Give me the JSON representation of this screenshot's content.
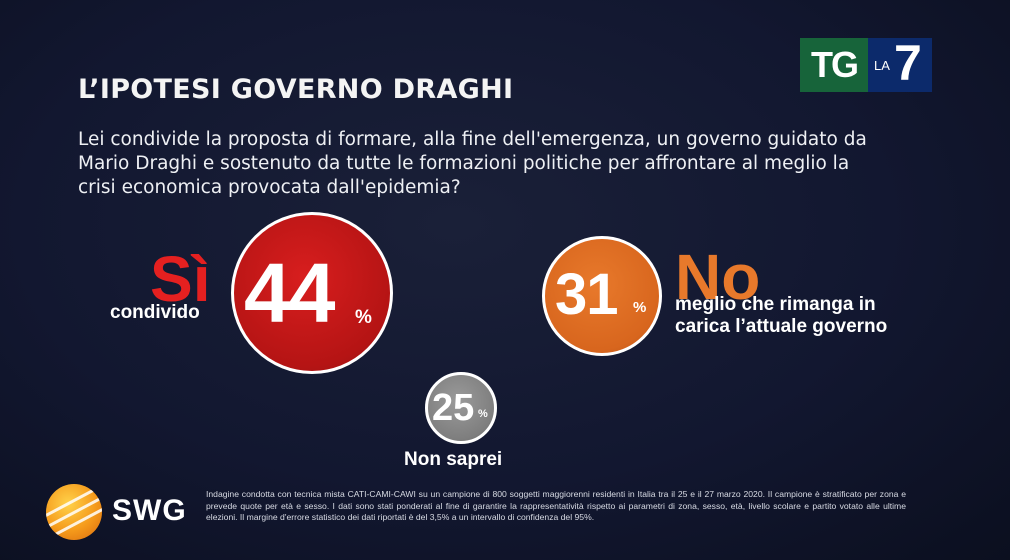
{
  "header": {
    "title": "L’IPOTESI GOVERNO DRAGHI",
    "question_lines": [
      "Lei condivide la proposta di formare, alla fine dell'emergenza, un governo guidato da",
      "Mario Draghi e sostenuto da tutte le formazioni politiche per affrontare al meglio la",
      "crisi economica provocata dall'epidemia?"
    ]
  },
  "broadcaster_logo": {
    "tg": "TG",
    "la": "LA",
    "seven": "7",
    "icon": "tg-la7-logo"
  },
  "chart_data": {
    "type": "bubble",
    "title": "L’IPOTESI GOVERNO DRAGHI",
    "unit": "%",
    "series": [
      {
        "name": "Sì",
        "sublabel_lines": [
          "condivido"
        ],
        "value": 44,
        "color": "#c81a1a",
        "label_color": "#e52020"
      },
      {
        "name": "No",
        "sublabel_lines": [
          "meglio che rimanga in",
          "carica l’attuale governo"
        ],
        "value": 31,
        "color": "#e06e24",
        "label_color": "#e8792b"
      },
      {
        "name": "",
        "sublabel_lines": [
          "Non saprei"
        ],
        "value": 25,
        "color": "#8a8a8a",
        "label_color": "#ffffff"
      }
    ]
  },
  "source": {
    "brand": "SWG",
    "icon": "swg-globe-logo",
    "note": "Indagine condotta con tecnica mista CATI-CAMI-CAWI su un campione di 800 soggetti maggiorenni residenti in Italia tra il 25 e il 27 marzo 2020. Il campione è stratificato per zona e prevede quote per età e sesso. I dati sono stati ponderati al fine di garantire la rappresentatività rispetto ai parametri di zona, sesso, età, livello scolare e partito votato alle ultime elezioni. Il margine d'errore statistico dei dati riportati è del 3,5% a un intervallo di confidenza del 95%."
  }
}
